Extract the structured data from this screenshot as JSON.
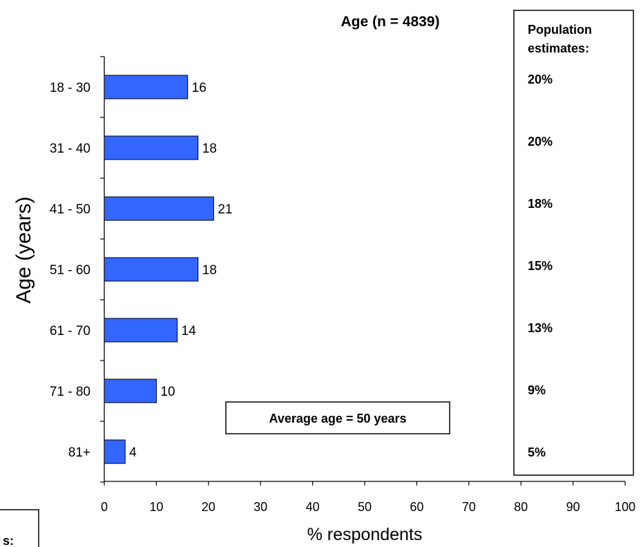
{
  "chart_data": {
    "type": "bar",
    "orientation": "horizontal",
    "title": "Age (n = 4839)",
    "xlabel": "% respondents",
    "ylabel": "Age (years)",
    "categories": [
      "18 - 30",
      "31 - 40",
      "41 - 50",
      "51 - 60",
      "61 - 70",
      "71 - 80",
      "81+"
    ],
    "values": [
      16,
      18,
      21,
      18,
      14,
      10,
      4
    ],
    "value_labels": [
      "16",
      "18",
      "21",
      "18",
      "14",
      "10",
      "4"
    ],
    "xlim": [
      0,
      100
    ],
    "x_ticks": [
      "0",
      "10",
      "20",
      "30",
      "40",
      "50",
      "60",
      "70",
      "80",
      "90",
      "100"
    ],
    "grid": false,
    "bar_color": "#3366ff",
    "annotation": "Average age = 50 years",
    "population_box": {
      "title_line1": "Population",
      "title_line2": "estimates:",
      "values": [
        "20%",
        "20%",
        "18%",
        "15%",
        "13%",
        "9%",
        "5%"
      ]
    },
    "cropped_fragment": "s:"
  }
}
